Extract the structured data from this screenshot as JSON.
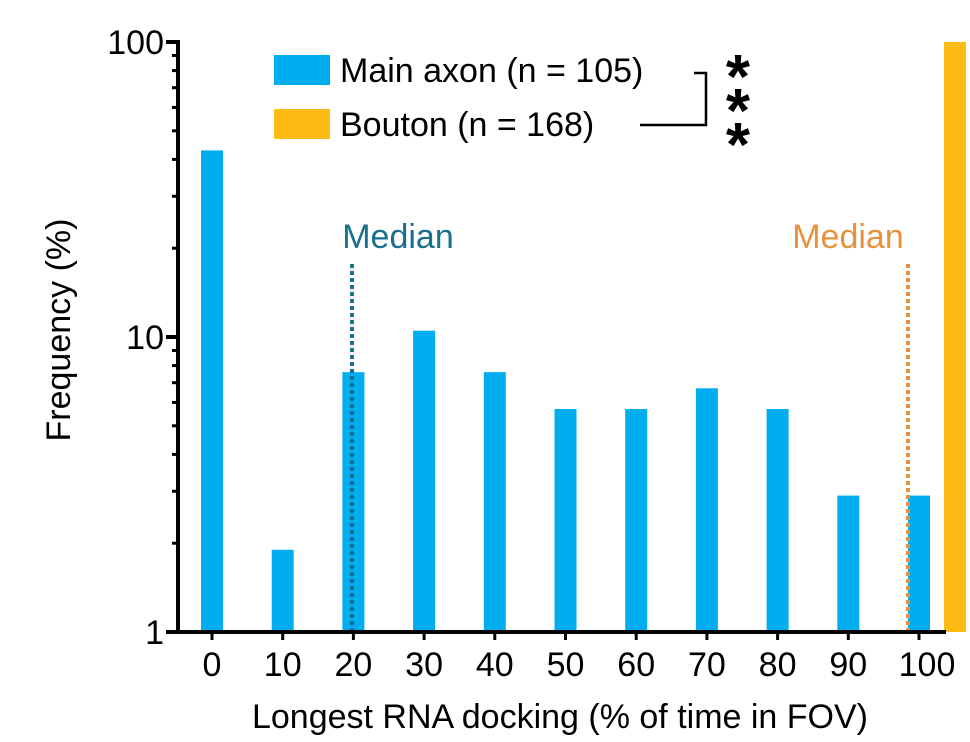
{
  "chart_data": {
    "type": "bar",
    "xlabel": "Longest RNA docking (% of time in FOV)",
    "ylabel": "Frequency (%)",
    "y_scale": "log",
    "ylim": [
      1,
      100
    ],
    "y_ticks": [
      {
        "value": 1,
        "label": "1"
      },
      {
        "value": 10,
        "label": "10"
      },
      {
        "value": 100,
        "label": "100"
      }
    ],
    "categories": [
      "0",
      "10",
      "20",
      "30",
      "40",
      "50",
      "60",
      "70",
      "80",
      "90",
      "100"
    ],
    "series": [
      {
        "name": "Main axon (n = 105)",
        "color": "#00AEEF",
        "x": [
          0,
          10,
          20,
          30,
          40,
          50,
          60,
          70,
          80,
          90,
          100
        ],
        "values": [
          42.9,
          1.9,
          7.6,
          10.5,
          7.6,
          5.7,
          5.7,
          6.7,
          5.7,
          2.9,
          2.9
        ]
      },
      {
        "name": "Bouton (n = 168)",
        "color": "#FDBB13",
        "x": [
          100
        ],
        "values": [
          100
        ]
      }
    ],
    "medians": [
      {
        "label": "Median",
        "x": 20,
        "color": "#1A6E8E"
      },
      {
        "label": "Median",
        "x": 100,
        "color": "#E8913C"
      }
    ],
    "significance": "***",
    "legend_position": "top"
  }
}
